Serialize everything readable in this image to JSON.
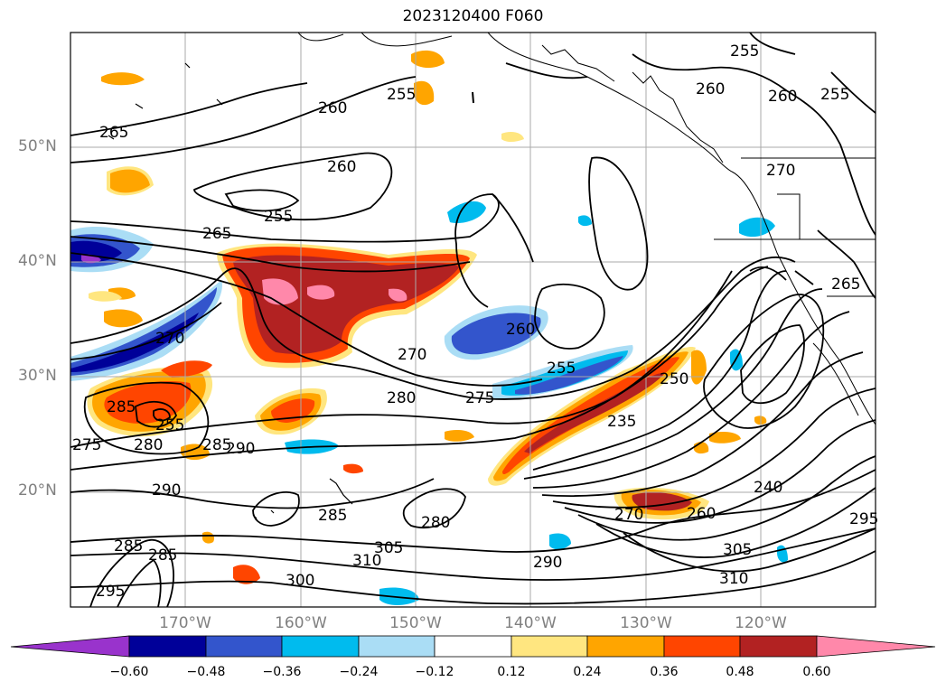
{
  "title": "2023120400 F060",
  "lat_labels": [
    "50°N",
    "40°N",
    "30°N",
    "20°N"
  ],
  "lon_labels": [
    "170°W",
    "160°W",
    "150°W",
    "140°W",
    "130°W",
    "120°W"
  ],
  "colorbar": {
    "ticks": [
      "−0.60",
      "−0.48",
      "−0.36",
      "−0.24",
      "−0.12",
      "0.12",
      "0.24",
      "0.36",
      "0.48",
      "0.60"
    ],
    "colors": [
      "#9933cc",
      "#000099",
      "#3355cc",
      "#00bbee",
      "#aaddf5",
      "#ffffff",
      "#ffe680",
      "#ffa500",
      "#ff4500",
      "#b22222",
      "#ff88aa"
    ]
  },
  "contour_labels": [
    "255",
    "260",
    "265",
    "270",
    "275",
    "280",
    "285",
    "290",
    "295",
    "300",
    "305",
    "310",
    "235",
    "240",
    "250"
  ]
}
